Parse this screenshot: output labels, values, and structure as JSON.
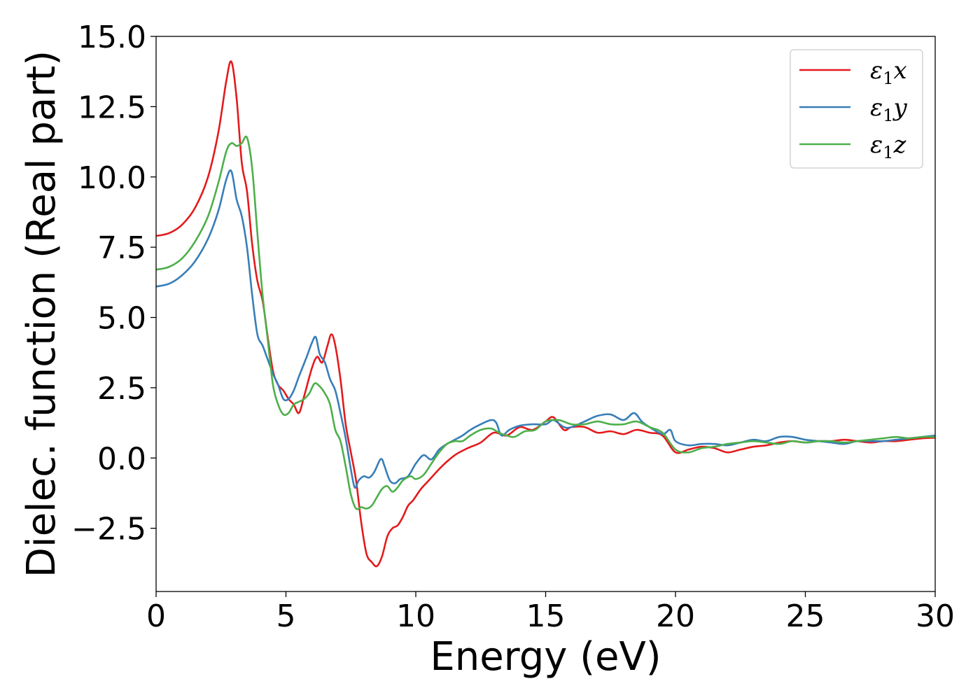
{
  "chart_data": {
    "type": "line",
    "title": "",
    "xlabel": "Energy (eV)",
    "ylabel": "Dielec. function (Real part)",
    "xlim": [
      0,
      30
    ],
    "ylim": [
      -4.75,
      15.0
    ],
    "xticks": [
      0,
      5,
      10,
      15,
      20,
      25,
      30
    ],
    "xtick_labels": [
      "0",
      "5",
      "10",
      "15",
      "20",
      "25",
      "30"
    ],
    "yticks": [
      -2.5,
      0.0,
      2.5,
      5.0,
      7.5,
      10.0,
      12.5,
      15.0
    ],
    "ytick_labels": [
      "−2.5",
      "0.0",
      "2.5",
      "5.0",
      "7.5",
      "10.0",
      "12.5",
      "15.0"
    ],
    "grid": false,
    "legend_position": "top-right",
    "series": [
      {
        "name": "ε₁x",
        "name_main": "ε",
        "name_sub": "1",
        "name_tail": "x",
        "color": "#e41a1c",
        "points": [
          [
            0,
            7.9
          ],
          [
            0.5,
            8.0
          ],
          [
            1.0,
            8.3
          ],
          [
            1.5,
            8.9
          ],
          [
            2.0,
            10.0
          ],
          [
            2.4,
            11.6
          ],
          [
            2.7,
            13.4
          ],
          [
            2.9,
            14.1
          ],
          [
            3.1,
            12.8
          ],
          [
            3.3,
            10.5
          ],
          [
            3.5,
            9.5
          ],
          [
            3.7,
            7.6
          ],
          [
            3.9,
            6.3
          ],
          [
            4.1,
            5.6
          ],
          [
            4.3,
            4.3
          ],
          [
            4.5,
            3.1
          ],
          [
            4.7,
            2.6
          ],
          [
            4.9,
            2.4
          ],
          [
            5.1,
            2.1
          ],
          [
            5.3,
            1.9
          ],
          [
            5.5,
            1.6
          ],
          [
            5.7,
            2.2
          ],
          [
            6.0,
            3.2
          ],
          [
            6.2,
            3.6
          ],
          [
            6.4,
            3.4
          ],
          [
            6.6,
            4.0
          ],
          [
            6.75,
            4.4
          ],
          [
            6.9,
            4.0
          ],
          [
            7.1,
            2.8
          ],
          [
            7.3,
            1.2
          ],
          [
            7.5,
            0.2
          ],
          [
            7.7,
            -0.8
          ],
          [
            7.9,
            -2.3
          ],
          [
            8.1,
            -3.4
          ],
          [
            8.3,
            -3.7
          ],
          [
            8.5,
            -3.85
          ],
          [
            8.7,
            -3.5
          ],
          [
            8.9,
            -2.8
          ],
          [
            9.1,
            -2.5
          ],
          [
            9.3,
            -2.4
          ],
          [
            9.5,
            -2.1
          ],
          [
            9.7,
            -1.7
          ],
          [
            9.9,
            -1.5
          ],
          [
            10.2,
            -1.1
          ],
          [
            10.5,
            -0.8
          ],
          [
            11.0,
            -0.3
          ],
          [
            11.5,
            0.1
          ],
          [
            12.0,
            0.35
          ],
          [
            12.5,
            0.55
          ],
          [
            13.0,
            0.9
          ],
          [
            13.5,
            0.8
          ],
          [
            14.0,
            1.1
          ],
          [
            14.5,
            1.0
          ],
          [
            15.0,
            1.3
          ],
          [
            15.3,
            1.45
          ],
          [
            15.7,
            1.0
          ],
          [
            16.0,
            1.1
          ],
          [
            16.5,
            1.1
          ],
          [
            17.0,
            0.9
          ],
          [
            17.5,
            0.95
          ],
          [
            18.0,
            0.85
          ],
          [
            18.5,
            1.0
          ],
          [
            19.0,
            0.9
          ],
          [
            19.5,
            0.8
          ],
          [
            20.0,
            0.2
          ],
          [
            20.5,
            0.3
          ],
          [
            21.0,
            0.4
          ],
          [
            21.5,
            0.35
          ],
          [
            22.0,
            0.2
          ],
          [
            22.5,
            0.3
          ],
          [
            23.0,
            0.4
          ],
          [
            23.5,
            0.45
          ],
          [
            24.0,
            0.55
          ],
          [
            24.5,
            0.6
          ],
          [
            25.0,
            0.55
          ],
          [
            25.5,
            0.6
          ],
          [
            26.0,
            0.6
          ],
          [
            26.5,
            0.65
          ],
          [
            27.0,
            0.6
          ],
          [
            27.5,
            0.55
          ],
          [
            28.0,
            0.6
          ],
          [
            28.5,
            0.6
          ],
          [
            29.0,
            0.65
          ],
          [
            29.5,
            0.7
          ],
          [
            30.0,
            0.72
          ]
        ]
      },
      {
        "name": "ε₁y",
        "name_main": "ε",
        "name_sub": "1",
        "name_tail": "y",
        "color": "#377eb8",
        "points": [
          [
            0,
            6.1
          ],
          [
            0.5,
            6.2
          ],
          [
            1.0,
            6.5
          ],
          [
            1.5,
            7.0
          ],
          [
            2.0,
            7.8
          ],
          [
            2.4,
            8.8
          ],
          [
            2.7,
            9.9
          ],
          [
            2.9,
            10.2
          ],
          [
            3.1,
            9.2
          ],
          [
            3.3,
            8.6
          ],
          [
            3.5,
            7.5
          ],
          [
            3.7,
            5.8
          ],
          [
            3.9,
            4.4
          ],
          [
            4.1,
            4.0
          ],
          [
            4.3,
            3.5
          ],
          [
            4.5,
            3.0
          ],
          [
            4.7,
            2.6
          ],
          [
            4.9,
            2.1
          ],
          [
            5.1,
            2.1
          ],
          [
            5.3,
            2.4
          ],
          [
            5.5,
            2.9
          ],
          [
            5.8,
            3.6
          ],
          [
            6.0,
            4.1
          ],
          [
            6.15,
            4.3
          ],
          [
            6.3,
            3.7
          ],
          [
            6.5,
            3.4
          ],
          [
            6.7,
            2.8
          ],
          [
            6.9,
            2.4
          ],
          [
            7.1,
            1.6
          ],
          [
            7.3,
            0.7
          ],
          [
            7.5,
            -0.4
          ],
          [
            7.65,
            -1.05
          ],
          [
            7.8,
            -0.8
          ],
          [
            8.0,
            -0.65
          ],
          [
            8.2,
            -0.7
          ],
          [
            8.4,
            -0.5
          ],
          [
            8.6,
            -0.1
          ],
          [
            8.7,
            -0.05
          ],
          [
            8.8,
            -0.3
          ],
          [
            9.0,
            -0.8
          ],
          [
            9.2,
            -0.9
          ],
          [
            9.4,
            -0.75
          ],
          [
            9.7,
            -0.65
          ],
          [
            10.0,
            -0.2
          ],
          [
            10.3,
            0.1
          ],
          [
            10.6,
            -0.05
          ],
          [
            10.9,
            0.3
          ],
          [
            11.2,
            0.5
          ],
          [
            11.5,
            0.65
          ],
          [
            11.8,
            0.8
          ],
          [
            12.1,
            1.0
          ],
          [
            12.5,
            1.2
          ],
          [
            12.9,
            1.35
          ],
          [
            13.1,
            1.25
          ],
          [
            13.3,
            0.8
          ],
          [
            13.6,
            1.0
          ],
          [
            14.0,
            1.15
          ],
          [
            14.5,
            1.2
          ],
          [
            15.0,
            1.2
          ],
          [
            15.3,
            1.35
          ],
          [
            15.7,
            1.1
          ],
          [
            16.0,
            1.1
          ],
          [
            16.5,
            1.3
          ],
          [
            17.0,
            1.5
          ],
          [
            17.5,
            1.55
          ],
          [
            18.0,
            1.35
          ],
          [
            18.4,
            1.6
          ],
          [
            18.7,
            1.3
          ],
          [
            19.0,
            1.1
          ],
          [
            19.5,
            0.85
          ],
          [
            19.8,
            1.0
          ],
          [
            20.0,
            0.6
          ],
          [
            20.5,
            0.45
          ],
          [
            21.0,
            0.5
          ],
          [
            21.5,
            0.5
          ],
          [
            22.0,
            0.45
          ],
          [
            22.5,
            0.55
          ],
          [
            23.0,
            0.65
          ],
          [
            23.5,
            0.6
          ],
          [
            24.0,
            0.75
          ],
          [
            24.5,
            0.75
          ],
          [
            25.0,
            0.65
          ],
          [
            25.5,
            0.6
          ],
          [
            26.0,
            0.55
          ],
          [
            26.5,
            0.5
          ],
          [
            27.0,
            0.6
          ],
          [
            27.5,
            0.6
          ],
          [
            28.0,
            0.6
          ],
          [
            28.5,
            0.65
          ],
          [
            29.0,
            0.7
          ],
          [
            29.5,
            0.75
          ],
          [
            30.0,
            0.8
          ]
        ]
      },
      {
        "name": "ε₁z",
        "name_main": "ε",
        "name_sub": "1",
        "name_tail": "z",
        "color": "#4daf4a",
        "points": [
          [
            0,
            6.7
          ],
          [
            0.5,
            6.8
          ],
          [
            1.0,
            7.1
          ],
          [
            1.5,
            7.7
          ],
          [
            2.0,
            8.6
          ],
          [
            2.4,
            9.8
          ],
          [
            2.7,
            10.9
          ],
          [
            2.9,
            11.2
          ],
          [
            3.1,
            11.1
          ],
          [
            3.3,
            11.2
          ],
          [
            3.5,
            11.4
          ],
          [
            3.7,
            10.3
          ],
          [
            3.9,
            8.0
          ],
          [
            4.1,
            5.8
          ],
          [
            4.3,
            4.2
          ],
          [
            4.5,
            2.6
          ],
          [
            4.7,
            1.9
          ],
          [
            4.9,
            1.55
          ],
          [
            5.1,
            1.6
          ],
          [
            5.3,
            1.9
          ],
          [
            5.5,
            2.0
          ],
          [
            5.7,
            2.1
          ],
          [
            5.9,
            2.3
          ],
          [
            6.1,
            2.65
          ],
          [
            6.3,
            2.55
          ],
          [
            6.5,
            2.3
          ],
          [
            6.7,
            1.9
          ],
          [
            6.9,
            1.0
          ],
          [
            7.1,
            0.6
          ],
          [
            7.3,
            -0.3
          ],
          [
            7.5,
            -1.3
          ],
          [
            7.7,
            -1.8
          ],
          [
            7.9,
            -1.75
          ],
          [
            8.1,
            -1.8
          ],
          [
            8.3,
            -1.7
          ],
          [
            8.5,
            -1.4
          ],
          [
            8.7,
            -1.1
          ],
          [
            8.9,
            -1.0
          ],
          [
            9.1,
            -1.2
          ],
          [
            9.3,
            -1.05
          ],
          [
            9.5,
            -0.8
          ],
          [
            9.8,
            -0.65
          ],
          [
            10.0,
            -0.75
          ],
          [
            10.3,
            -0.6
          ],
          [
            10.6,
            -0.2
          ],
          [
            10.9,
            0.2
          ],
          [
            11.2,
            0.5
          ],
          [
            11.5,
            0.6
          ],
          [
            11.8,
            0.6
          ],
          [
            12.1,
            0.8
          ],
          [
            12.5,
            1.0
          ],
          [
            12.9,
            1.05
          ],
          [
            13.2,
            0.9
          ],
          [
            13.5,
            0.8
          ],
          [
            13.8,
            0.75
          ],
          [
            14.2,
            0.95
          ],
          [
            14.6,
            1.0
          ],
          [
            15.0,
            1.3
          ],
          [
            15.5,
            1.35
          ],
          [
            16.0,
            1.2
          ],
          [
            16.5,
            1.2
          ],
          [
            17.0,
            1.3
          ],
          [
            17.5,
            1.2
          ],
          [
            18.0,
            1.2
          ],
          [
            18.5,
            1.3
          ],
          [
            19.0,
            1.1
          ],
          [
            19.5,
            0.9
          ],
          [
            20.0,
            0.3
          ],
          [
            20.5,
            0.2
          ],
          [
            21.0,
            0.35
          ],
          [
            21.5,
            0.4
          ],
          [
            22.0,
            0.5
          ],
          [
            22.5,
            0.55
          ],
          [
            23.0,
            0.6
          ],
          [
            23.5,
            0.55
          ],
          [
            24.0,
            0.5
          ],
          [
            24.5,
            0.6
          ],
          [
            25.0,
            0.55
          ],
          [
            25.5,
            0.6
          ],
          [
            26.0,
            0.6
          ],
          [
            26.5,
            0.55
          ],
          [
            27.0,
            0.6
          ],
          [
            27.5,
            0.65
          ],
          [
            28.0,
            0.7
          ],
          [
            28.5,
            0.75
          ],
          [
            29.0,
            0.7
          ],
          [
            29.5,
            0.75
          ],
          [
            30.0,
            0.75
          ]
        ]
      }
    ]
  }
}
